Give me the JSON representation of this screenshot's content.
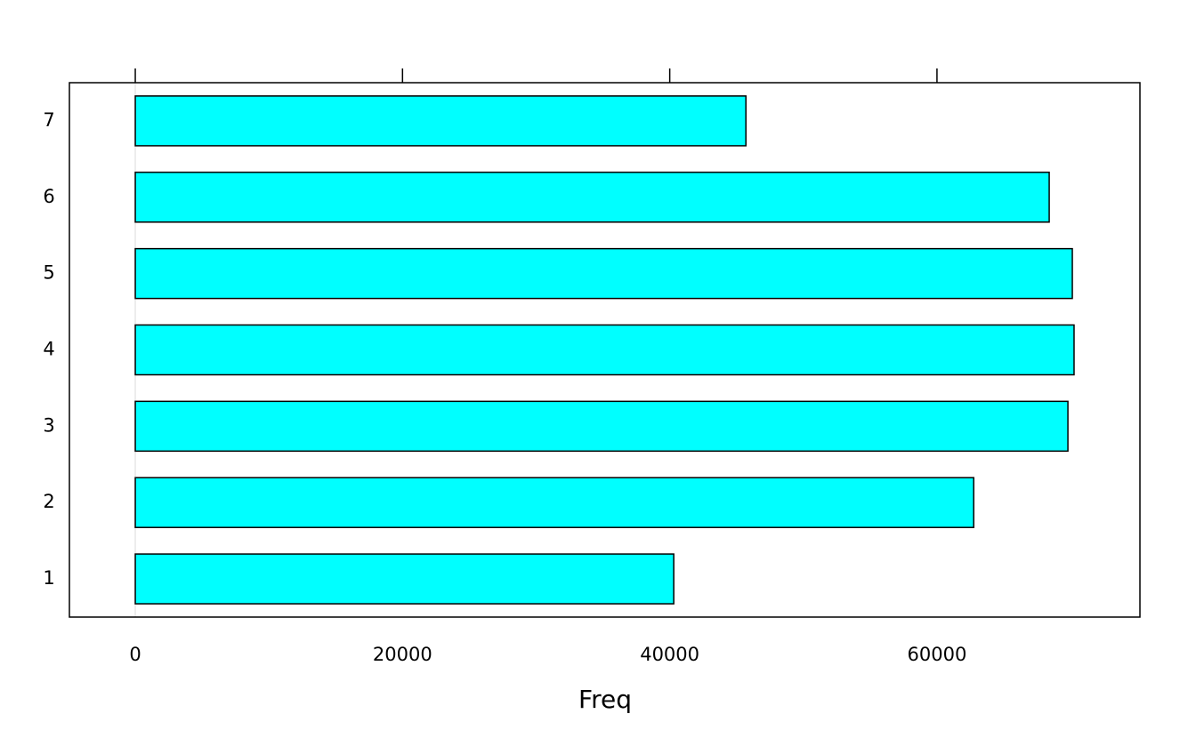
{
  "chart_data": {
    "type": "barh",
    "xlabel": "Freq",
    "categories": [
      "1",
      "2",
      "3",
      "4",
      "5",
      "6",
      "7"
    ],
    "values": [
      40300,
      62750,
      69800,
      70260,
      70130,
      68400,
      45700
    ],
    "color": "#00ffff",
    "xlim": [
      -4930,
      75190
    ],
    "xticks": [
      0,
      20000,
      40000,
      60000
    ]
  }
}
